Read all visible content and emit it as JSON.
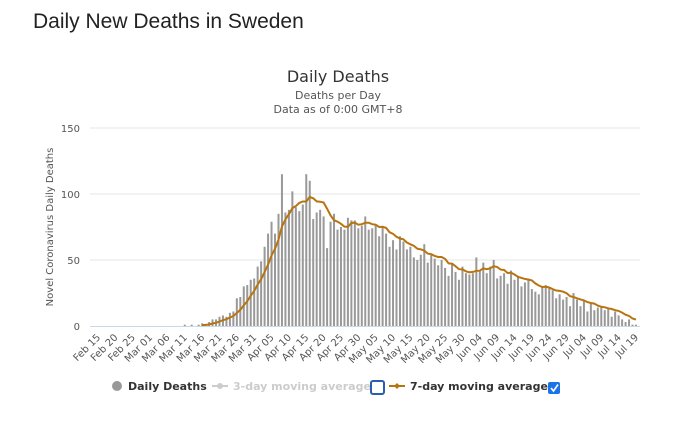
{
  "page_title": "Daily New Deaths in Sweden",
  "chart_data": {
    "type": "bar",
    "title": "Daily Deaths",
    "subtitle": "Deaths per Day",
    "subtitle2": "Data as of 0:00 GMT+8",
    "ylabel": "Novel Coronavirus Daily Deaths",
    "xlabel": "",
    "ylim": [
      0,
      150
    ],
    "yticks": [
      0,
      50,
      100,
      150
    ],
    "grid": true,
    "start_date": "Feb 15",
    "xtick_labels": [
      "Feb 15",
      "Feb 20",
      "Feb 25",
      "Mar 01",
      "Mar 06",
      "Mar 11",
      "Mar 16",
      "Mar 21",
      "Mar 26",
      "Mar 31",
      "Apr 05",
      "Apr 10",
      "Apr 15",
      "Apr 20",
      "Apr 25",
      "Apr 30",
      "May 05",
      "May 10",
      "May 15",
      "May 20",
      "May 25",
      "May 30",
      "Jun 04",
      "Jun 09",
      "Jun 14",
      "Jun 19",
      "Jun 24",
      "Jun 29",
      "Jul 04",
      "Jul 09",
      "Jul 14",
      "Jul 19"
    ],
    "series": [
      {
        "name": "Daily Deaths",
        "type": "bar",
        "color": "#999999",
        "values": [
          0,
          0,
          0,
          0,
          0,
          0,
          0,
          0,
          0,
          0,
          0,
          0,
          0,
          0,
          0,
          0,
          0,
          0,
          0,
          0,
          0,
          0,
          0,
          0,
          0,
          1,
          0,
          1,
          0,
          1,
          2,
          1,
          3,
          5,
          5,
          7,
          8,
          7,
          10,
          11,
          21,
          22,
          30,
          31,
          35,
          36,
          45,
          49,
          60,
          70,
          79,
          70,
          85,
          115,
          86,
          88,
          102,
          90,
          87,
          92,
          115,
          110,
          81,
          86,
          88,
          83,
          59,
          79,
          85,
          73,
          75,
          73,
          82,
          80,
          80,
          74,
          76,
          83,
          73,
          74,
          77,
          68,
          75,
          70,
          60,
          65,
          58,
          68,
          64,
          58,
          60,
          52,
          50,
          54,
          62,
          48,
          55,
          51,
          46,
          50,
          44,
          38,
          47,
          41,
          35,
          45,
          40,
          39,
          40,
          52,
          42,
          48,
          40,
          45,
          50,
          36,
          38,
          40,
          32,
          42,
          35,
          38,
          30,
          33,
          36,
          28,
          26,
          24,
          30,
          31,
          29,
          27,
          21,
          24,
          20,
          22,
          15,
          25,
          20,
          15,
          19,
          11,
          17,
          12,
          14,
          14,
          12,
          14,
          7,
          11,
          8,
          5,
          3,
          5,
          1,
          1
        ]
      },
      {
        "name": "3-day moving average",
        "type": "line",
        "visible": false,
        "color": "#cccccc"
      },
      {
        "name": "7-day moving average",
        "type": "line",
        "visible": true,
        "color": "#b8740f",
        "window": 7
      }
    ],
    "legend": {
      "placement": "bottom",
      "items": [
        "Daily Deaths",
        "3-day moving average",
        "7-day moving average"
      ]
    }
  }
}
